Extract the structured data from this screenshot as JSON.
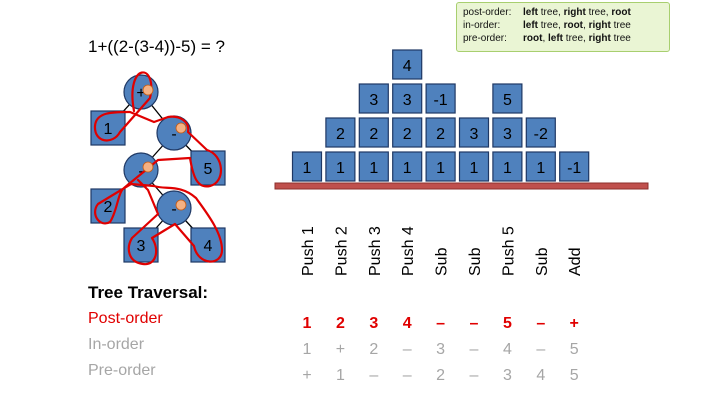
{
  "expression": "1+((2-(3-4))-5) = ?",
  "legend": {
    "rows": [
      {
        "label": "post-order:",
        "parts": [
          {
            "t": "left",
            "b": true
          },
          {
            "t": " tree, ",
            "b": false
          },
          {
            "t": "right",
            "b": true
          },
          {
            "t": " tree, ",
            "b": false
          },
          {
            "t": "root",
            "b": true
          }
        ]
      },
      {
        "label": "in-order:",
        "parts": [
          {
            "t": "left",
            "b": true
          },
          {
            "t": " tree, ",
            "b": false
          },
          {
            "t": "root",
            "b": true
          },
          {
            "t": ", ",
            "b": false
          },
          {
            "t": "right",
            "b": true
          },
          {
            "t": " tree",
            "b": false
          }
        ]
      },
      {
        "label": "pre-order:",
        "parts": [
          {
            "t": "root",
            "b": true
          },
          {
            "t": ", ",
            "b": false
          },
          {
            "t": "left",
            "b": true
          },
          {
            "t": " tree, ",
            "b": false
          },
          {
            "t": "right",
            "b": true
          },
          {
            "t": " tree",
            "b": false
          }
        ]
      }
    ]
  },
  "tree": {
    "nodes": [
      {
        "id": "plus",
        "label": "+",
        "shape": "circle"
      },
      {
        "id": "one",
        "label": "1",
        "shape": "square"
      },
      {
        "id": "minus1",
        "label": "-",
        "shape": "circle"
      },
      {
        "id": "minus2",
        "label": "-",
        "shape": "circle"
      },
      {
        "id": "five",
        "label": "5",
        "shape": "square"
      },
      {
        "id": "two",
        "label": "2",
        "shape": "square"
      },
      {
        "id": "minus3",
        "label": "-",
        "shape": "circle"
      },
      {
        "id": "three",
        "label": "3",
        "shape": "square"
      },
      {
        "id": "four",
        "label": "4",
        "shape": "square"
      }
    ],
    "edges": [
      [
        "plus",
        "one"
      ],
      [
        "plus",
        "minus1"
      ],
      [
        "minus1",
        "minus2"
      ],
      [
        "minus1",
        "five"
      ],
      [
        "minus2",
        "two"
      ],
      [
        "minus2",
        "minus3"
      ],
      [
        "minus3",
        "three"
      ],
      [
        "minus3",
        "four"
      ]
    ]
  },
  "stack_steps": [
    {
      "label": "Push 1",
      "stack": [
        "1"
      ]
    },
    {
      "label": "Push 2",
      "stack": [
        "1",
        "2"
      ]
    },
    {
      "label": "Push 3",
      "stack": [
        "1",
        "2",
        "3"
      ]
    },
    {
      "label": "Push 4",
      "stack": [
        "1",
        "2",
        "3",
        "4"
      ]
    },
    {
      "label": "Sub",
      "stack": [
        "1",
        "2",
        "-1"
      ]
    },
    {
      "label": "Sub",
      "stack": [
        "1",
        "3"
      ]
    },
    {
      "label": "Push 5",
      "stack": [
        "1",
        "3",
        "5"
      ]
    },
    {
      "label": "Sub",
      "stack": [
        "1",
        "-2"
      ]
    },
    {
      "label": "Add",
      "stack": [
        "-1"
      ]
    }
  ],
  "traversal": {
    "heading": "Tree Traversal:",
    "rows": [
      {
        "label": "Post-order",
        "color": "#e00000",
        "bold": true,
        "values": [
          "1",
          "2",
          "3",
          "4",
          "–",
          "–",
          "5",
          "–",
          "+"
        ]
      },
      {
        "label": "In-order",
        "color": "#a6a6a6",
        "bold": false,
        "values": [
          "1",
          "+",
          "2",
          "–",
          "3",
          "–",
          "4",
          "–",
          "5"
        ]
      },
      {
        "label": "Pre-order",
        "color": "#a6a6a6",
        "bold": false,
        "values": [
          "+",
          "1",
          "–",
          "–",
          "2",
          "–",
          "3",
          "4",
          "5"
        ]
      }
    ]
  },
  "colors": {
    "box_fill": "#4f81bd",
    "box_stroke": "#1f3864",
    "shelf": "#c0504d",
    "trace": "#e00000",
    "dot": "#f4b183"
  }
}
